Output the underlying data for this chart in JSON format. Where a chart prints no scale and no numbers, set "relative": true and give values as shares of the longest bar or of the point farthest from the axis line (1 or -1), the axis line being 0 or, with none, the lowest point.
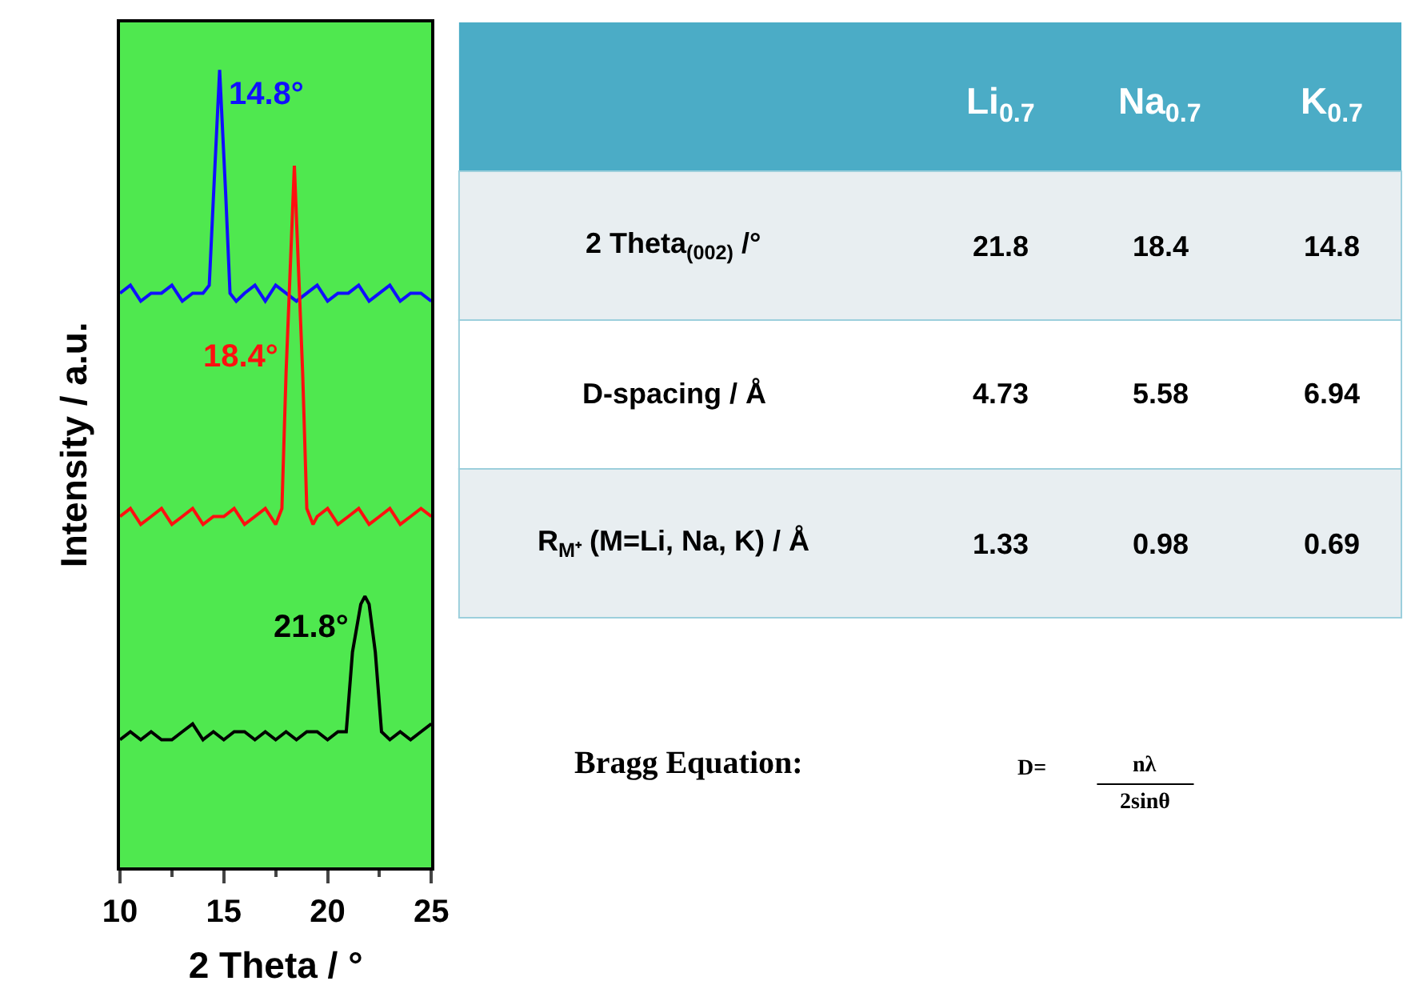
{
  "chart_data": [
    {
      "type": "line",
      "relative": true,
      "xlabel": "2 Theta / °",
      "ylabel": "Intensity / a.u.",
      "xlim": [
        10,
        25
      ],
      "xticks": [
        10,
        15,
        20,
        25
      ],
      "grid": false,
      "marker": "none",
      "line_style": "solid",
      "tick_labels": "x",
      "series": [
        {
          "color": "#1010ff",
          "x": [
            10,
            10.5,
            11,
            11.5,
            12,
            12.5,
            13,
            13.5,
            14,
            14.3,
            14.5,
            14.8,
            15.1,
            15.3,
            15.6,
            16,
            16.5,
            17,
            17.5,
            18,
            18.5,
            19,
            19.5,
            20,
            20.5,
            21,
            21.5,
            22,
            22.5,
            23,
            23.5,
            24,
            24.5,
            25
          ],
          "values": [
            0.72,
            0.73,
            0.71,
            0.72,
            0.72,
            0.73,
            0.71,
            0.72,
            0.72,
            0.73,
            0.84,
            1.0,
            0.84,
            0.72,
            0.71,
            0.72,
            0.73,
            0.71,
            0.73,
            0.72,
            0.71,
            0.72,
            0.73,
            0.71,
            0.72,
            0.72,
            0.73,
            0.71,
            0.72,
            0.73,
            0.71,
            0.72,
            0.72,
            0.71
          ]
        },
        {
          "color": "#ff1010",
          "x": [
            10,
            10.5,
            11,
            11.5,
            12,
            12.5,
            13,
            13.5,
            14,
            14.5,
            15,
            15.5,
            16,
            16.5,
            17,
            17.5,
            17.8,
            18.0,
            18.4,
            18.8,
            19.0,
            19.3,
            19.5,
            20,
            20.5,
            21,
            21.5,
            22,
            22.5,
            23,
            23.5,
            24,
            24.5,
            25
          ],
          "values": [
            0.44,
            0.45,
            0.43,
            0.44,
            0.45,
            0.43,
            0.44,
            0.45,
            0.43,
            0.44,
            0.44,
            0.45,
            0.43,
            0.44,
            0.45,
            0.43,
            0.45,
            0.62,
            0.88,
            0.62,
            0.45,
            0.43,
            0.44,
            0.45,
            0.43,
            0.44,
            0.45,
            0.43,
            0.44,
            0.45,
            0.43,
            0.44,
            0.45,
            0.44
          ]
        },
        {
          "color": "#000000",
          "x": [
            10,
            10.5,
            11,
            11.5,
            12,
            12.5,
            13,
            13.5,
            14,
            14.5,
            15,
            15.5,
            16,
            16.5,
            17,
            17.5,
            18,
            18.5,
            19,
            19.5,
            20,
            20.5,
            20.9,
            21.2,
            21.6,
            21.8,
            22.0,
            22.3,
            22.6,
            23,
            23.5,
            24,
            24.5,
            25
          ],
          "values": [
            0.16,
            0.17,
            0.16,
            0.17,
            0.16,
            0.16,
            0.17,
            0.18,
            0.16,
            0.17,
            0.16,
            0.17,
            0.17,
            0.16,
            0.17,
            0.16,
            0.17,
            0.16,
            0.17,
            0.17,
            0.16,
            0.17,
            0.17,
            0.27,
            0.33,
            0.34,
            0.33,
            0.27,
            0.17,
            0.16,
            0.17,
            0.16,
            0.17,
            0.18
          ]
        }
      ],
      "annotations": [
        {
          "text": "14.8°",
          "x": 14.8,
          "y": 0.97
        },
        {
          "text": "18.4°",
          "x": 18.4,
          "y": 0.64
        },
        {
          "text": "21.8°",
          "x": 21.8,
          "y": 0.3
        }
      ]
    },
    {
      "type": "other",
      "annotations": [
        "Li$_{0.7}$",
        "Na$_{0.7}$",
        "K$_{0.7}$",
        "2 Theta$_{(002)}$ /°",
        "21.8",
        "18.4",
        "14.8",
        "D-spacing / Å",
        "4.73",
        "5.58",
        "6.94",
        "R$_{M⁺}$ (M=Li, Na, K) / Å",
        "1.33",
        "0.98",
        "0.69",
        "Bragg Equation:",
        "D=",
        "nλ",
        "2sinθ"
      ]
    }
  ]
}
